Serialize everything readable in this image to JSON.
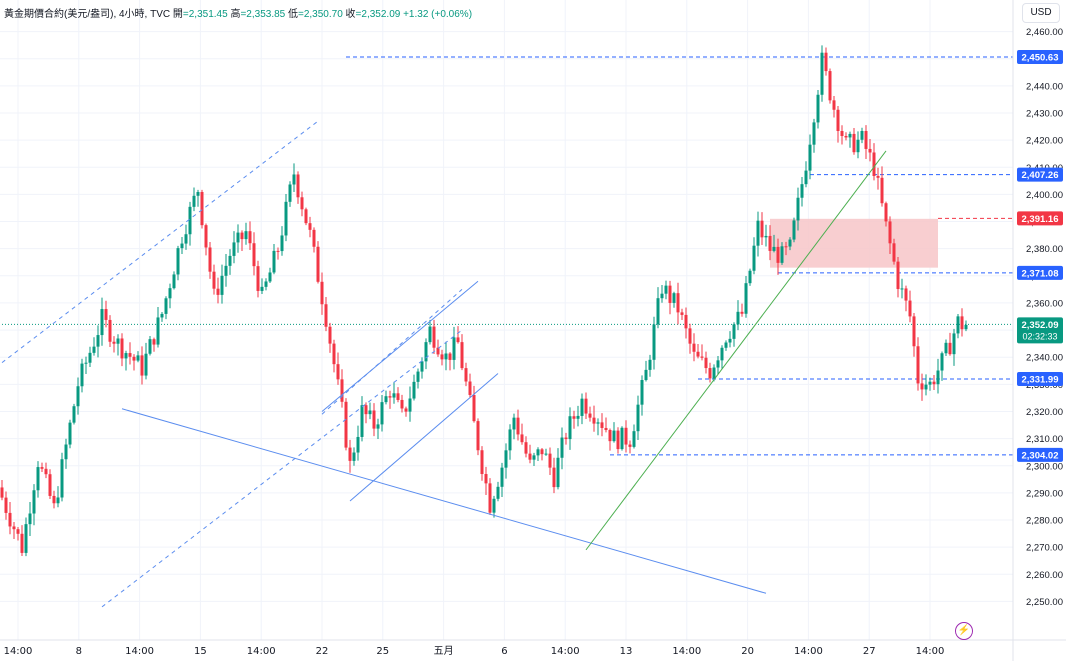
{
  "legend": {
    "symbol": "黃金期價合約(美元/盎司), 4小時, TVC",
    "open_label": "開",
    "open": "=2,351.45",
    "high_label": "高",
    "high": "=2,353.85",
    "low_label": "低",
    "low": "=2,350.70",
    "close_label": "收",
    "close": "=2,352.09",
    "change": "+1.32 (+0.06%)"
  },
  "currency_button": "USD",
  "colors": {
    "up": "#089981",
    "down": "#f23645",
    "blue": "#2962ff",
    "trend_blue": "#5b8def",
    "green_line": "#4caf50",
    "zone": "#f7c5c8"
  },
  "chart_data": {
    "type": "candlestick",
    "ylim": [
      2245,
      2465
    ],
    "y_ticks": [
      "2,250.00",
      "2,260.00",
      "2,270.00",
      "2,280.00",
      "2,290.00",
      "2,300.00",
      "2,310.00",
      "2,320.00",
      "2,330.00",
      "2,340.00",
      "2,350.00",
      "2,360.00",
      "2,370.00",
      "2,380.00",
      "2,390.00",
      "2,400.00",
      "2,410.00",
      "2,420.00",
      "2,430.00",
      "2,440.00",
      "2,450.00",
      "2,460.00"
    ],
    "x_labels": [
      "14:00",
      "8",
      "14:00",
      "15",
      "14:00",
      "22",
      "25",
      "五月",
      "6",
      "14:00",
      "13",
      "14:00",
      "20",
      "14:00",
      "27",
      "14:00"
    ],
    "anchors": [
      {
        "t": 0,
        "p": 2292
      },
      {
        "t": 6,
        "p": 2270
      },
      {
        "t": 10,
        "p": 2302
      },
      {
        "t": 14,
        "p": 2284
      },
      {
        "t": 20,
        "p": 2330
      },
      {
        "t": 26,
        "p": 2354
      },
      {
        "t": 30,
        "p": 2345
      },
      {
        "t": 36,
        "p": 2336
      },
      {
        "t": 41,
        "p": 2356
      },
      {
        "t": 46,
        "p": 2385
      },
      {
        "t": 50,
        "p": 2402
      },
      {
        "t": 54,
        "p": 2362
      },
      {
        "t": 58,
        "p": 2378
      },
      {
        "t": 62,
        "p": 2386
      },
      {
        "t": 66,
        "p": 2362
      },
      {
        "t": 70,
        "p": 2380
      },
      {
        "t": 74,
        "p": 2408
      },
      {
        "t": 78,
        "p": 2385
      },
      {
        "t": 82,
        "p": 2355
      },
      {
        "t": 86,
        "p": 2320
      },
      {
        "t": 88,
        "p": 2300
      },
      {
        "t": 91,
        "p": 2320
      },
      {
        "t": 94,
        "p": 2315
      },
      {
        "t": 98,
        "p": 2328
      },
      {
        "t": 101,
        "p": 2318
      },
      {
        "t": 104,
        "p": 2330
      },
      {
        "t": 108,
        "p": 2350
      },
      {
        "t": 112,
        "p": 2340
      },
      {
        "t": 115,
        "p": 2345
      },
      {
        "t": 119,
        "p": 2315
      },
      {
        "t": 123,
        "p": 2286
      },
      {
        "t": 126,
        "p": 2300
      },
      {
        "t": 129,
        "p": 2318
      },
      {
        "t": 133,
        "p": 2300
      },
      {
        "t": 136,
        "p": 2306
      },
      {
        "t": 139,
        "p": 2296
      },
      {
        "t": 142,
        "p": 2312
      },
      {
        "t": 146,
        "p": 2324
      },
      {
        "t": 150,
        "p": 2318
      },
      {
        "t": 154,
        "p": 2310
      },
      {
        "t": 158,
        "p": 2310
      },
      {
        "t": 162,
        "p": 2334
      },
      {
        "t": 166,
        "p": 2366
      },
      {
        "t": 170,
        "p": 2358
      },
      {
        "t": 174,
        "p": 2340
      },
      {
        "t": 178,
        "p": 2335
      },
      {
        "t": 182,
        "p": 2348
      },
      {
        "t": 186,
        "p": 2356
      },
      {
        "t": 190,
        "p": 2388
      },
      {
        "t": 193,
        "p": 2380
      },
      {
        "t": 196,
        "p": 2377
      },
      {
        "t": 198,
        "p": 2380
      },
      {
        "t": 202,
        "p": 2412
      },
      {
        "t": 206,
        "p": 2449
      },
      {
        "t": 209,
        "p": 2432
      },
      {
        "t": 212,
        "p": 2418
      },
      {
        "t": 216,
        "p": 2420
      },
      {
        "t": 219,
        "p": 2410
      },
      {
        "t": 222,
        "p": 2388
      },
      {
        "t": 225,
        "p": 2368
      },
      {
        "t": 228,
        "p": 2355
      },
      {
        "t": 230,
        "p": 2332
      },
      {
        "t": 233,
        "p": 2330
      },
      {
        "t": 236,
        "p": 2338
      },
      {
        "t": 238,
        "p": 2345
      },
      {
        "t": 240,
        "p": 2353
      },
      {
        "t": 241,
        "p": 2352
      }
    ],
    "price_levels": [
      {
        "label": "2,450.63",
        "value": 2450.63,
        "style": "dashed-blue",
        "from_t": 86
      },
      {
        "label": "2,407.26",
        "value": 2407.26,
        "style": "dashed-blue",
        "from_t": 202
      },
      {
        "label": "2,391.16",
        "value": 2391.16,
        "style": "dashed-red",
        "from_t": 234
      },
      {
        "label": "2,371.08",
        "value": 2371.08,
        "style": "dashed-blue",
        "from_t": 194
      },
      {
        "label": "2,352.09",
        "value": 2352.09,
        "style": "dotted-green",
        "from_t": 0,
        "sublabel": "02:32:33"
      },
      {
        "label": "2,331.99",
        "value": 2331.99,
        "style": "dashed-blue",
        "from_t": 174
      },
      {
        "label": "2,304.02",
        "value": 2304.02,
        "style": "dashed-blue",
        "from_t": 152
      }
    ],
    "zone": {
      "from_t": 192,
      "to_t": 234,
      "low": 2373,
      "high": 2391
    },
    "trendlines": [
      {
        "color": "trend_blue",
        "dash": true,
        "t1": 0,
        "p1": 2338,
        "t2": 79,
        "p2": 2427
      },
      {
        "color": "trend_blue",
        "dash": true,
        "t1": 25,
        "p1": 2248,
        "t2": 115,
        "p2": 2350
      },
      {
        "color": "trend_blue",
        "dash": true,
        "t1": 80,
        "p1": 2319,
        "t2": 115,
        "p2": 2365
      },
      {
        "color": "trend_blue",
        "dash": false,
        "t1": 80,
        "p1": 2320,
        "t2": 119,
        "p2": 2368
      },
      {
        "color": "trend_blue",
        "dash": false,
        "t1": 87,
        "p1": 2287,
        "t2": 124,
        "p2": 2334
      },
      {
        "color": "trend_blue",
        "dash": false,
        "t1": 30,
        "p1": 2321,
        "t2": 191,
        "p2": 2253
      },
      {
        "color": "green_line",
        "dash": false,
        "t1": 146,
        "p1": 2269,
        "t2": 221,
        "p2": 2416
      }
    ]
  }
}
